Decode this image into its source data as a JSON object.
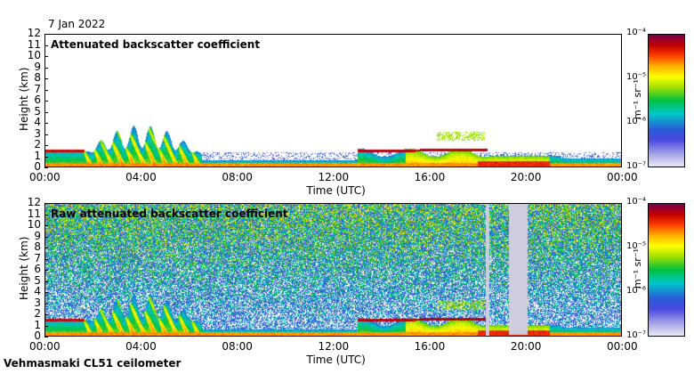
{
  "date": "7 Jan 2022",
  "footer": "Vehmasmaki CL51 ceilometer",
  "chart_data": [
    {
      "type": "heatmap",
      "title": "Attenuated backscatter coefficient",
      "xlabel": "Time (UTC)",
      "ylabel": "Height (km)",
      "x_ticks": [
        "00:00",
        "04:00",
        "08:00",
        "12:00",
        "16:00",
        "20:00",
        "00:00"
      ],
      "y_ticks": [
        "0",
        "1",
        "2",
        "3",
        "4",
        "5",
        "6",
        "7",
        "8",
        "9",
        "10",
        "11",
        "12"
      ],
      "ylim": [
        0,
        12
      ],
      "xlim_hours": [
        0,
        24
      ],
      "colorbar": {
        "unit": "m⁻¹ sr⁻¹",
        "ticks": [
          "10⁻⁷",
          "10⁻⁶",
          "10⁻⁵",
          "10⁻⁴"
        ]
      }
    },
    {
      "type": "heatmap",
      "title": "Raw attenuated backscatter coefficient",
      "xlabel": "Time (UTC)",
      "ylabel": "Height (km)",
      "x_ticks": [
        "00:00",
        "04:00",
        "08:00",
        "12:00",
        "16:00",
        "20:00",
        "00:00"
      ],
      "y_ticks": [
        "0",
        "1",
        "2",
        "3",
        "4",
        "5",
        "6",
        "7",
        "8",
        "9",
        "10",
        "11",
        "12"
      ],
      "ylim": [
        0,
        12
      ],
      "xlim_hours": [
        0,
        24
      ],
      "colorbar": {
        "unit": "m⁻¹ sr⁻¹",
        "ticks": [
          "10⁻⁷",
          "10⁻⁶",
          "10⁻⁵",
          "10⁻⁴"
        ]
      }
    }
  ]
}
